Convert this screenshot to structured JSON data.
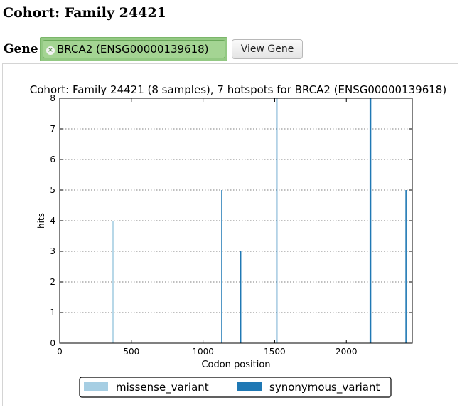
{
  "page": {
    "title": "Cohort: Family 24421"
  },
  "gene_selector": {
    "label": "Gene",
    "selected_gene": "BRCA2 (ENSG00000139618)",
    "remove_icon": "×",
    "view_button_label": "View Gene"
  },
  "chart_data": {
    "type": "bar",
    "title": "Cohort: Family 24421 (8 samples), 7 hotspots for BRCA2 (ENSG00000139618)",
    "xlabel": "Codon position",
    "ylabel": "hits",
    "xlim": [
      0,
      2460
    ],
    "ylim": [
      0,
      8
    ],
    "xticks": [
      0,
      500,
      1000,
      1500,
      2000
    ],
    "yticks": [
      0,
      1,
      2,
      3,
      4,
      5,
      6,
      7,
      8
    ],
    "grid": "y-dotted",
    "legend_position": "bottom",
    "series": [
      {
        "name": "missense_variant",
        "color": "#a6cee3",
        "points": [
          {
            "x": 372,
            "y": 4
          }
        ]
      },
      {
        "name": "synonymous_variant",
        "color": "#1f78b4",
        "points": [
          {
            "x": 1131,
            "y": 5
          },
          {
            "x": 1263,
            "y": 3
          },
          {
            "x": 1515,
            "y": 8
          },
          {
            "x": 2166,
            "y": 8
          },
          {
            "x": 2170,
            "y": 8
          },
          {
            "x": 2416,
            "y": 5
          }
        ]
      }
    ]
  }
}
